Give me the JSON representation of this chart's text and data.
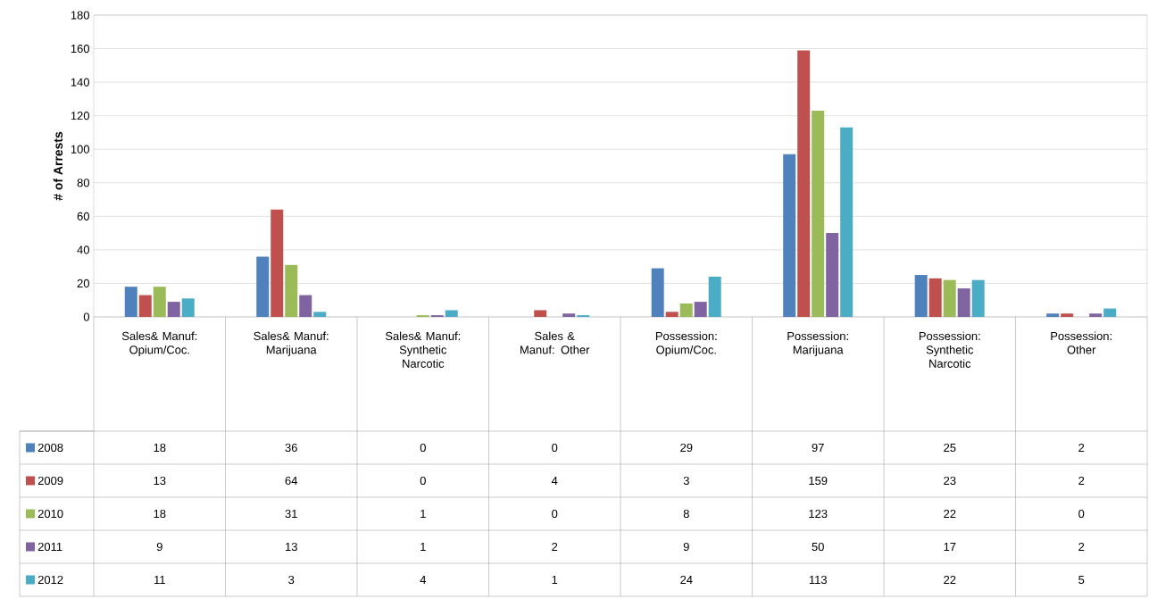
{
  "chart_data": {
    "type": "bar",
    "ylabel": "# of Arrests",
    "categories": [
      "Sales& Manuf: Opium/Coc.",
      "Sales& Manuf: Marijuana",
      "Sales& Manuf: Synthetic Narcotic",
      "Sales & Manuf: Other",
      "Possession: Opium/Coc.",
      "Possession: Marijuana",
      "Possession: Synthetic Narcotic",
      "Possession: Other"
    ],
    "series": [
      {
        "name": "2008",
        "color": "#4f81bd",
        "values": [
          18,
          36,
          0,
          0,
          29,
          97,
          25,
          2
        ]
      },
      {
        "name": "2009",
        "color": "#c0504d",
        "values": [
          13,
          64,
          0,
          4,
          3,
          159,
          23,
          2
        ]
      },
      {
        "name": "2010",
        "color": "#9bbb59",
        "values": [
          18,
          31,
          1,
          0,
          8,
          123,
          22,
          0
        ]
      },
      {
        "name": "2011",
        "color": "#8064a2",
        "values": [
          9,
          13,
          1,
          2,
          9,
          50,
          17,
          2
        ]
      },
      {
        "name": "2012",
        "color": "#4bacc6",
        "values": [
          11,
          3,
          4,
          1,
          24,
          113,
          22,
          5
        ]
      }
    ],
    "ylim": [
      0,
      180
    ],
    "yticks": [
      0,
      20,
      40,
      60,
      80,
      100,
      120,
      140,
      160,
      180
    ],
    "grid": "y",
    "legend": "left",
    "data_labels": true
  }
}
